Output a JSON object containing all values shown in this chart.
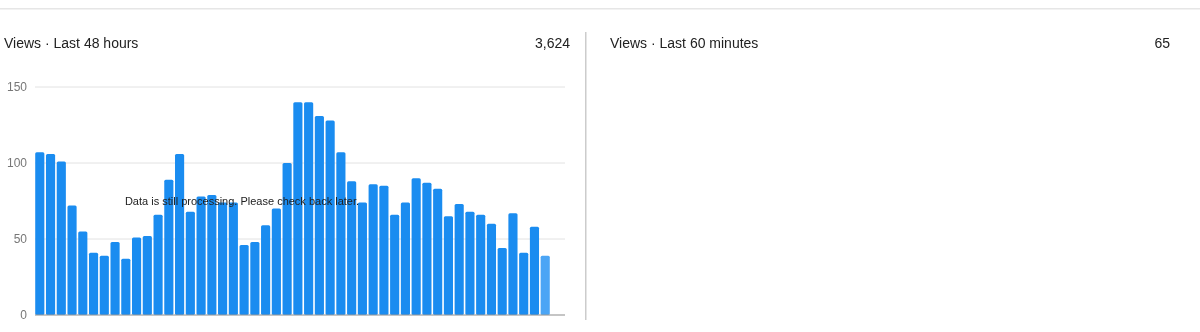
{
  "chart_data": [
    {
      "type": "bar",
      "title": "Views · Last 48 hours",
      "annotations": [
        "3,624",
        {
          "text": "Data is still processing. Please check back later."
        }
      ],
      "categories": [
        null,
        null,
        null,
        null,
        null,
        null,
        null,
        null,
        null,
        null,
        null,
        null,
        null,
        null,
        null,
        null,
        null,
        null,
        null,
        null,
        null,
        null,
        null,
        null,
        null,
        null,
        null,
        null,
        null,
        null,
        null,
        null,
        null,
        null,
        null,
        null,
        null,
        null,
        null,
        null,
        null,
        null,
        null,
        null,
        null,
        null,
        null,
        null
      ],
      "values": [
        107,
        106,
        101,
        72,
        55,
        41,
        39,
        48,
        37,
        51,
        52,
        66,
        89,
        106,
        68,
        78,
        79,
        74,
        74,
        46,
        48,
        59,
        70,
        100,
        140,
        140,
        131,
        128,
        107,
        88,
        74,
        86,
        85,
        66,
        74,
        90,
        87,
        83,
        65,
        73,
        68,
        66,
        60,
        44,
        67,
        41,
        58,
        39
      ],
      "colors": [
        "#1a8cf0",
        "#1a8cf0",
        "#1a8cf0",
        "#1a8cf0",
        "#1a8cf0",
        "#1a8cf0",
        "#1a8cf0",
        "#1a8cf0",
        "#1a8cf0",
        "#1a8cf0",
        "#1a8cf0",
        "#1a8cf0",
        "#1a8cf0",
        "#1a8cf0",
        "#1a8cf0",
        "#1a8cf0",
        "#1a8cf0",
        "#1a8cf0",
        "#1a8cf0",
        "#1a8cf0",
        "#1a8cf0",
        "#1a8cf0",
        "#1a8cf0",
        "#1a8cf0",
        "#1a8cf0",
        "#1a8cf0",
        "#1a8cf0",
        "#1a8cf0",
        "#1a8cf0",
        "#1a8cf0",
        "#1a8cf0",
        "#1a8cf0",
        "#1a8cf0",
        "#1a8cf0",
        "#1a8cf0",
        "#1a8cf0",
        "#1a8cf0",
        "#1a8cf0",
        "#1a8cf0",
        "#1a8cf0",
        "#1a8cf0",
        "#1a8cf0",
        "#1a8cf0",
        "#1a8cf0",
        "#1a8cf0",
        "#1a8cf0",
        "#1a8cf0",
        "#4ba5f5"
      ],
      "ylim": [
        0,
        150
      ],
      "yticks": [
        0,
        50,
        100,
        150
      ],
      "grid": "y",
      "tick_labels": "y"
    },
    {
      "type": "other",
      "title": "Views · Last 60 minutes",
      "annotations": [
        "65"
      ]
    }
  ]
}
